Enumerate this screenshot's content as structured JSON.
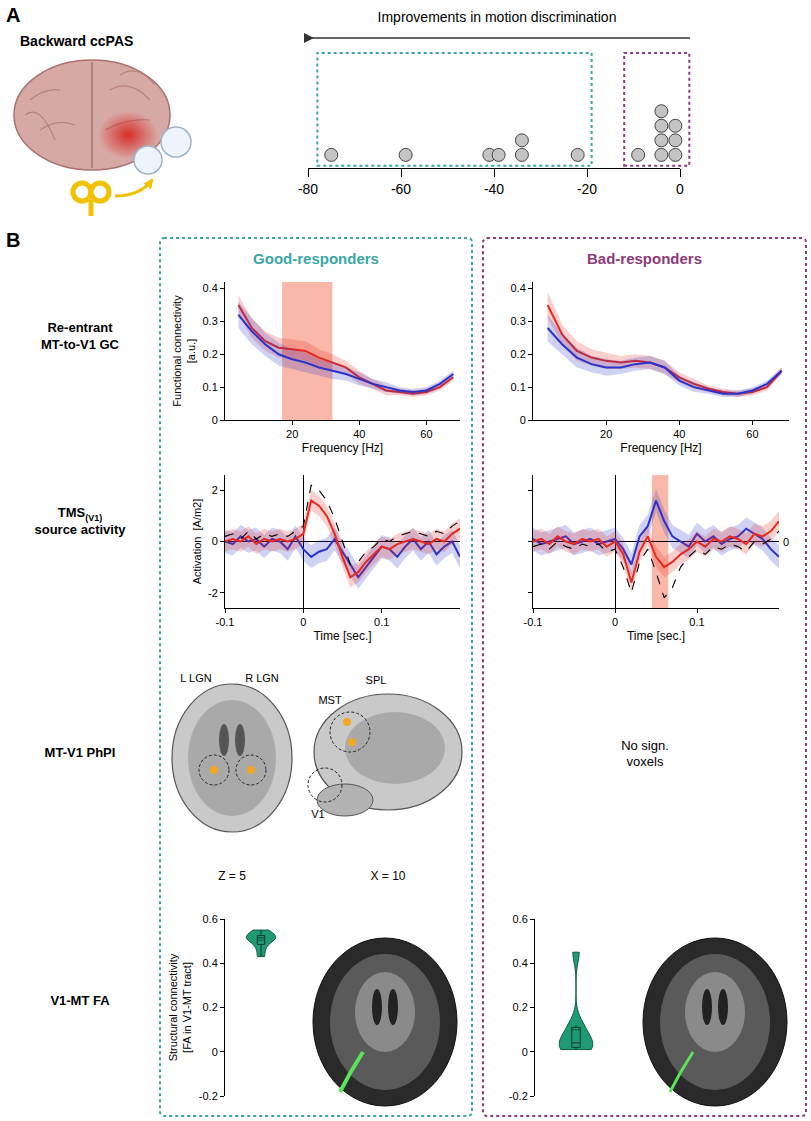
{
  "figure": {
    "panel_letters": [
      "A",
      "B"
    ],
    "a_title": "Backward ccPAS",
    "groups": [
      {
        "title": "Good-responders",
        "color": "#3aa7a3"
      },
      {
        "title": "Bad-responders",
        "color": "#8e3a78"
      }
    ],
    "row_labels": [
      {
        "lines": [
          "Re-entrant",
          "MT-to-V1 GC"
        ]
      },
      {
        "lines": [
          "TMS",
          "source activity"
        ],
        "subscript": "(V1)"
      },
      {
        "lines": [
          "MT-V1 PhPI"
        ]
      },
      {
        "lines": [
          "V1-MT FA"
        ]
      }
    ],
    "phpi": {
      "good_labels": [
        "L LGN",
        "R LGN",
        "MST",
        "SPL",
        "V1"
      ],
      "slice_labels": [
        "Z = 5",
        "X = 10"
      ],
      "bad_lines": [
        "No sign.",
        "voxels"
      ]
    }
  },
  "chart_data": [
    {
      "type": "scatter",
      "title": "Improvements in motion discrimination",
      "color": "#c4c4c4",
      "marker": "circle",
      "groups": [
        {
          "values": [
            -75,
            -59,
            -41,
            -39,
            -34,
            -34,
            -22
          ]
        },
        {
          "values": [
            -9,
            -4,
            -4,
            -4,
            -4,
            -1,
            -1,
            -1
          ]
        }
      ],
      "xlim": [
        -80,
        0
      ],
      "xticks": [
        -80,
        -60,
        -40,
        -20,
        0
      ],
      "tick_labels": "x"
    },
    {
      "type": "line",
      "xlabel": "Frequency [Hz]",
      "ylabel": "Functional connectivity  [a.u.]",
      "x": [
        4,
        8,
        12,
        16,
        20,
        24,
        28,
        32,
        36,
        40,
        44,
        48,
        52,
        56,
        60,
        64,
        68
      ],
      "series": [
        {
          "color": "#e8281e",
          "values": [
            0.35,
            0.28,
            0.24,
            0.22,
            0.215,
            0.21,
            0.19,
            0.175,
            0.16,
            0.13,
            0.11,
            0.09,
            0.085,
            0.08,
            0.085,
            0.1,
            0.13
          ],
          "error": [
            0.03,
            0.03,
            0.03,
            0.03,
            0.03,
            0.03,
            0.025,
            0.025,
            0.02,
            0.02,
            0.015,
            0.015,
            0.01,
            0.01,
            0.01,
            0.01,
            0.01
          ]
        },
        {
          "color": "#2b33c8",
          "values": [
            0.32,
            0.27,
            0.23,
            0.2,
            0.185,
            0.175,
            0.16,
            0.15,
            0.14,
            0.125,
            0.11,
            0.1,
            0.09,
            0.085,
            0.09,
            0.11,
            0.14
          ],
          "error": [
            0.04,
            0.04,
            0.035,
            0.035,
            0.03,
            0.03,
            0.025,
            0.025,
            0.02,
            0.02,
            0.015,
            0.015,
            0.01,
            0.01,
            0.01,
            0.01,
            0.01
          ]
        }
      ],
      "highlight": [
        17,
        32
      ],
      "highlight_color": "#f7a08e",
      "xlim": [
        0,
        70
      ],
      "xticks": [
        20,
        40,
        60
      ],
      "ylim": [
        0,
        0.42
      ],
      "yticks": [
        0,
        0.1,
        0.2,
        0.3,
        0.4
      ]
    },
    {
      "type": "line",
      "xlabel": "Frequency [Hz]",
      "x": [
        4,
        8,
        12,
        16,
        20,
        24,
        28,
        32,
        36,
        40,
        44,
        48,
        52,
        56,
        60,
        64,
        68
      ],
      "series": [
        {
          "color": "#e8281e",
          "values": [
            0.35,
            0.26,
            0.21,
            0.19,
            0.18,
            0.175,
            0.18,
            0.175,
            0.16,
            0.13,
            0.11,
            0.095,
            0.085,
            0.08,
            0.085,
            0.1,
            0.15
          ],
          "error": [
            0.04,
            0.03,
            0.03,
            0.025,
            0.025,
            0.02,
            0.02,
            0.02,
            0.02,
            0.015,
            0.015,
            0.01,
            0.01,
            0.01,
            0.01,
            0.01,
            0.01
          ]
        },
        {
          "color": "#2b33c8",
          "values": [
            0.28,
            0.23,
            0.19,
            0.17,
            0.16,
            0.16,
            0.17,
            0.175,
            0.16,
            0.12,
            0.1,
            0.09,
            0.08,
            0.08,
            0.09,
            0.11,
            0.15
          ],
          "error": [
            0.04,
            0.03,
            0.03,
            0.025,
            0.025,
            0.02,
            0.02,
            0.02,
            0.02,
            0.015,
            0.015,
            0.01,
            0.01,
            0.01,
            0.01,
            0.01,
            0.01
          ]
        }
      ],
      "xlim": [
        0,
        70
      ],
      "xticks": [
        20,
        40,
        60
      ],
      "ylim": [
        0,
        0.42
      ],
      "yticks": [
        0,
        0.1,
        0.2,
        0.3,
        0.4
      ]
    },
    {
      "type": "line",
      "xlabel": "Time [sec.]",
      "ylabel": "Activation  [A/m2]",
      "x": [
        -0.1,
        -0.09,
        -0.08,
        -0.07,
        -0.06,
        -0.05,
        -0.04,
        -0.03,
        -0.02,
        -0.01,
        0,
        0.01,
        0.02,
        0.03,
        0.04,
        0.05,
        0.06,
        0.07,
        0.08,
        0.09,
        0.1,
        0.11,
        0.12,
        0.13,
        0.14,
        0.15,
        0.16,
        0.17,
        0.18,
        0.19,
        0.2
      ],
      "series": [
        {
          "color": "#2b33c8",
          "error": 0.45,
          "values": [
            0,
            -0.1,
            0.2,
            0,
            0.1,
            -0.2,
            0.1,
            0,
            -0.3,
            0.2,
            -0.3,
            -0.6,
            -0.4,
            -0.3,
            0.1,
            -0.4,
            -0.9,
            -1.4,
            -1.0,
            -0.6,
            -0.2,
            -0.3,
            -0.6,
            -0.2,
            0.1,
            -0.3,
            0,
            -0.5,
            -0.2,
            0,
            -0.6
          ]
        },
        {
          "color": "#e8281e",
          "error": 0.4,
          "values": [
            0,
            0.1,
            0,
            0.2,
            -0.1,
            0.1,
            0,
            0.1,
            0,
            0.1,
            0.3,
            1.6,
            1.4,
            1.0,
            0.3,
            -0.6,
            -1.4,
            -1.2,
            -0.8,
            -0.5,
            -0.2,
            -0.3,
            -0.1,
            0,
            0.1,
            0,
            -0.1,
            0.1,
            0,
            0.3,
            0.5
          ]
        },
        {
          "color": "#000000",
          "line_style": "dash",
          "values": [
            0.2,
            0.3,
            0.1,
            0.4,
            0.1,
            0.3,
            0.2,
            0.3,
            0.2,
            0.4,
            0.6,
            2.2,
            2.0,
            1.6,
            0.9,
            0,
            -0.9,
            -0.8,
            -0.4,
            -0.2,
            0.1,
            0,
            0.2,
            0.3,
            0.4,
            0.3,
            0.2,
            0.4,
            0.3,
            0.6,
            0.8
          ]
        }
      ],
      "xlim": [
        -0.1,
        0.2
      ],
      "xticks": [
        -0.1,
        0,
        0.1
      ],
      "ylim": [
        -2.6,
        2.6
      ],
      "yticks": [
        -2,
        0,
        2
      ]
    },
    {
      "type": "line",
      "xlabel": "Time [sec.]",
      "x": [
        -0.1,
        -0.09,
        -0.08,
        -0.07,
        -0.06,
        -0.05,
        -0.04,
        -0.03,
        -0.02,
        -0.01,
        0,
        0.01,
        0.02,
        0.03,
        0.04,
        0.05,
        0.06,
        0.07,
        0.08,
        0.09,
        0.1,
        0.11,
        0.12,
        0.13,
        0.14,
        0.15,
        0.16,
        0.17,
        0.18,
        0.19,
        0.2
      ],
      "series": [
        {
          "color": "#2b33c8",
          "error": 0.45,
          "values": [
            0.1,
            -0.1,
            0,
            0.1,
            0.2,
            -0.1,
            0,
            0.1,
            -0.1,
            0,
            0.1,
            -0.3,
            -0.9,
            0.2,
            0.6,
            1.6,
            0.8,
            0.2,
            0,
            -0.2,
            0.3,
            0,
            0.2,
            -0.1,
            0.1,
            0.2,
            0.5,
            0.3,
            0.1,
            -0.3,
            -0.6
          ]
        },
        {
          "color": "#e8281e",
          "error": 0.4,
          "values": [
            0,
            0.1,
            -0.1,
            0.2,
            0,
            -0.1,
            0.1,
            0,
            0.1,
            -0.2,
            0,
            -0.5,
            -1.6,
            -0.4,
            0.2,
            -0.6,
            -1.0,
            -0.8,
            -0.5,
            -0.3,
            0,
            -0.2,
            0.1,
            0,
            0.2,
            0.1,
            -0.1,
            0.3,
            0.2,
            0.4,
            0.8
          ]
        },
        {
          "color": "#000000",
          "line_style": "dash",
          "values": [
            -0.2,
            -0.1,
            -0.3,
            0,
            -0.2,
            -0.3,
            -0.1,
            -0.2,
            -0.1,
            -0.4,
            -0.3,
            -1.0,
            -2.0,
            -0.8,
            -0.3,
            -1.2,
            -2.2,
            -1.8,
            -1.0,
            -0.6,
            -0.3,
            -0.5,
            -0.2,
            -0.3,
            -0.1,
            -0.2,
            -0.4,
            0,
            -0.1,
            0.1,
            0.4
          ]
        }
      ],
      "highlight": [
        0.045,
        0.065
      ],
      "highlight_color": "#f7a08e",
      "annotations": [
        {
          "text": "0",
          "y": 0
        }
      ],
      "xlim": [
        -0.1,
        0.2
      ],
      "xticks": [
        -0.1,
        0,
        0.1
      ],
      "ylim": [
        -2.6,
        2.6
      ],
      "yticks": [
        -2,
        0,
        2
      ],
      "tick_labels": "x"
    },
    {
      "type": "violin",
      "ylabel": "Structural connectivity [FA in V1-MT tract]",
      "color": "#1f9a72",
      "values": [
        0.43,
        0.47,
        0.5,
        0.51,
        0.52,
        0.52,
        0.53,
        0.55
      ],
      "ylim": [
        -0.2,
        0.6
      ],
      "yticks": [
        -0.2,
        0,
        0.2,
        0.4,
        0.6
      ],
      "tick_labels": "y"
    },
    {
      "type": "violin",
      "color": "#1f9a72",
      "values": [
        0.01,
        0.02,
        0.02,
        0.03,
        0.05,
        0.1,
        0.12,
        0.45
      ],
      "ylim": [
        -0.2,
        0.6
      ],
      "yticks": [
        -0.2,
        0,
        0.2,
        0.4,
        0.6
      ],
      "tick_labels": "y"
    }
  ]
}
